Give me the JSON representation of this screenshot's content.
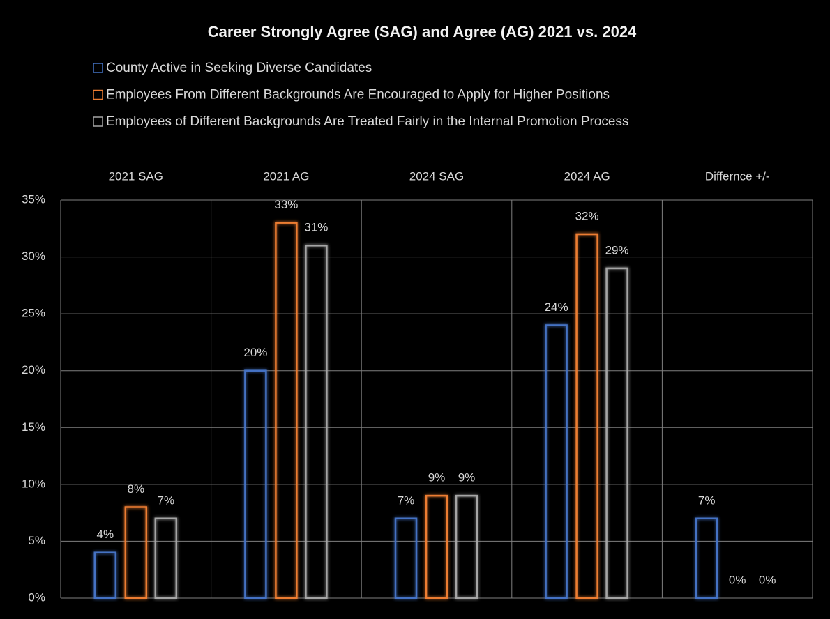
{
  "chart_data": {
    "type": "bar",
    "title": "Career Strongly Agree (SAG) and Agree (AG) 2021 vs. 2024",
    "categories": [
      "2021 SAG",
      "2021 AG",
      "2024 SAG",
      "2024 AG",
      "Differnce +/-"
    ],
    "series": [
      {
        "name": "County Active in Seeking Diverse Candidates",
        "color": "#4472c4",
        "values": [
          4,
          20,
          7,
          24,
          7
        ],
        "value_labels": [
          "4%",
          "20%",
          "7%",
          "24%",
          "7%"
        ]
      },
      {
        "name": "Employees From Different Backgrounds Are Encouraged to Apply for Higher Positions",
        "color": "#ed7d31",
        "values": [
          8,
          33,
          9,
          32,
          0
        ],
        "value_labels": [
          "8%",
          "33%",
          "9%",
          "32%",
          "0%"
        ]
      },
      {
        "name": "Employees of Different Backgrounds Are Treated Fairly in the Internal Promotion Process",
        "color": "#a5a5a5",
        "values": [
          7,
          31,
          9,
          29,
          0
        ],
        "value_labels": [
          "7%",
          "31%",
          "9%",
          "29%",
          "0%"
        ]
      }
    ],
    "ylim": [
      0,
      35
    ],
    "yticks": [
      {
        "value": 0,
        "label": "0%"
      },
      {
        "value": 5,
        "label": "5%"
      },
      {
        "value": 10,
        "label": "10%"
      },
      {
        "value": 15,
        "label": "15%"
      },
      {
        "value": 20,
        "label": "20%"
      },
      {
        "value": 25,
        "label": "25%"
      },
      {
        "value": 30,
        "label": "30%"
      },
      {
        "value": 35,
        "label": "35%"
      }
    ],
    "grid": true,
    "legend": "top"
  }
}
